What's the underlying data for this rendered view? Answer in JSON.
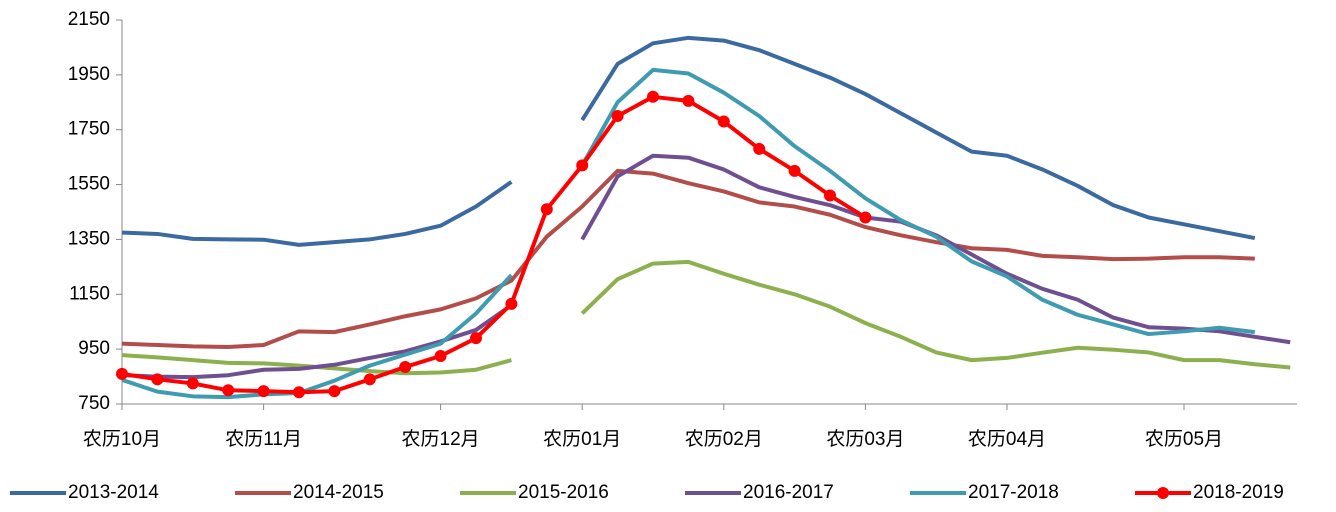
{
  "chart_data": {
    "type": "line",
    "categories": [
      "农历10月",
      null,
      null,
      null,
      "农历11月",
      null,
      null,
      null,
      null,
      "农历12月",
      null,
      null,
      null,
      "农历01月",
      null,
      null,
      null,
      "农历02月",
      null,
      null,
      null,
      "农历03月",
      null,
      null,
      null,
      "农历04月",
      null,
      null,
      null,
      null,
      "农历05月",
      null,
      null,
      null
    ],
    "ylim": [
      750,
      2150
    ],
    "yticks": [
      750,
      950,
      1150,
      1350,
      1550,
      1750,
      1950,
      2150
    ],
    "series": [
      {
        "name": "2013-2014",
        "color": "#3b6aa0",
        "values": [
          1375,
          1370,
          1352,
          1350,
          1349,
          1330,
          1340,
          1350,
          1370,
          1400,
          1470,
          1560,
          null,
          1785,
          1990,
          2065,
          2085,
          2075,
          2040,
          1990,
          1940,
          1880,
          1810,
          1740,
          1670,
          1655,
          1605,
          1545,
          1475,
          1430,
          1405,
          1380,
          1355,
          null
        ]
      },
      {
        "name": "2014-2015",
        "color": "#b34d4a",
        "values": [
          970,
          965,
          960,
          958,
          965,
          1015,
          1012,
          1040,
          1070,
          1095,
          1135,
          1200,
          1360,
          1470,
          1600,
          1590,
          1555,
          1525,
          1485,
          1470,
          1440,
          1395,
          1365,
          1340,
          1318,
          1312,
          1290,
          1285,
          1278,
          1280,
          1285,
          1285,
          1280,
          null
        ]
      },
      {
        "name": "2015-2016",
        "color": "#8db04e",
        "values": [
          928,
          920,
          910,
          900,
          898,
          890,
          880,
          870,
          862,
          865,
          875,
          910,
          null,
          1080,
          1205,
          1262,
          1268,
          1225,
          1185,
          1150,
          1105,
          1045,
          995,
          938,
          910,
          918,
          937,
          955,
          948,
          938,
          910,
          910,
          895,
          883
        ]
      },
      {
        "name": "2016-2017",
        "color": "#6f4f90",
        "values": [
          855,
          850,
          848,
          855,
          875,
          878,
          893,
          918,
          942,
          978,
          1020,
          1110,
          null,
          1350,
          1580,
          1655,
          1648,
          1605,
          1540,
          1505,
          1475,
          1430,
          1415,
          1365,
          1295,
          1225,
          1170,
          1130,
          1065,
          1030,
          1025,
          1015,
          995,
          975
        ]
      },
      {
        "name": "2017-2018",
        "color": "#3e9bb0",
        "values": [
          838,
          795,
          778,
          775,
          785,
          790,
          835,
          890,
          930,
          970,
          1080,
          1220,
          null,
          1620,
          1850,
          1968,
          1955,
          1885,
          1800,
          1690,
          1600,
          1500,
          1420,
          1360,
          1270,
          1215,
          1130,
          1075,
          1040,
          1005,
          1015,
          1028,
          1012,
          null
        ]
      },
      {
        "name": "2018-2019",
        "color": "#ff0000",
        "marker": true,
        "values": [
          860,
          840,
          825,
          800,
          797,
          793,
          797,
          840,
          885,
          925,
          990,
          1115,
          1460,
          1620,
          1800,
          1870,
          1855,
          1780,
          1680,
          1600,
          1510,
          1430,
          null,
          null,
          null,
          null,
          null,
          null,
          null,
          null,
          null,
          null,
          null,
          null
        ]
      }
    ]
  }
}
